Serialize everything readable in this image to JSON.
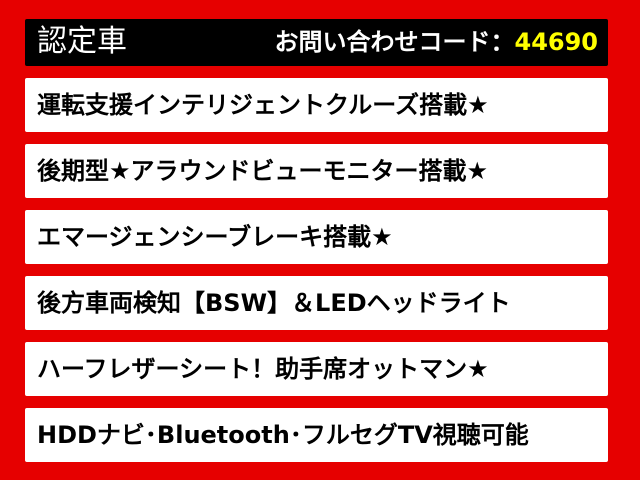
{
  "header": {
    "title": "認定車",
    "code_label": "お問い合わせコード：",
    "code_value": "44690"
  },
  "features": [
    "運転支援インテリジェントクルーズ搭載★",
    "後期型★アラウンドビューモニター搭載★",
    "エマージェンシーブレーキ搭載★",
    "後方車両検知【BSW】＆LEDヘッドライト",
    "ハーフレザーシート！助手席オットマン★",
    "HDDナビ･Bluetooth･フルセグTV視聴可能"
  ],
  "colors": {
    "background": "#e60000",
    "header": "#000000",
    "code_value": "#ffff00"
  }
}
